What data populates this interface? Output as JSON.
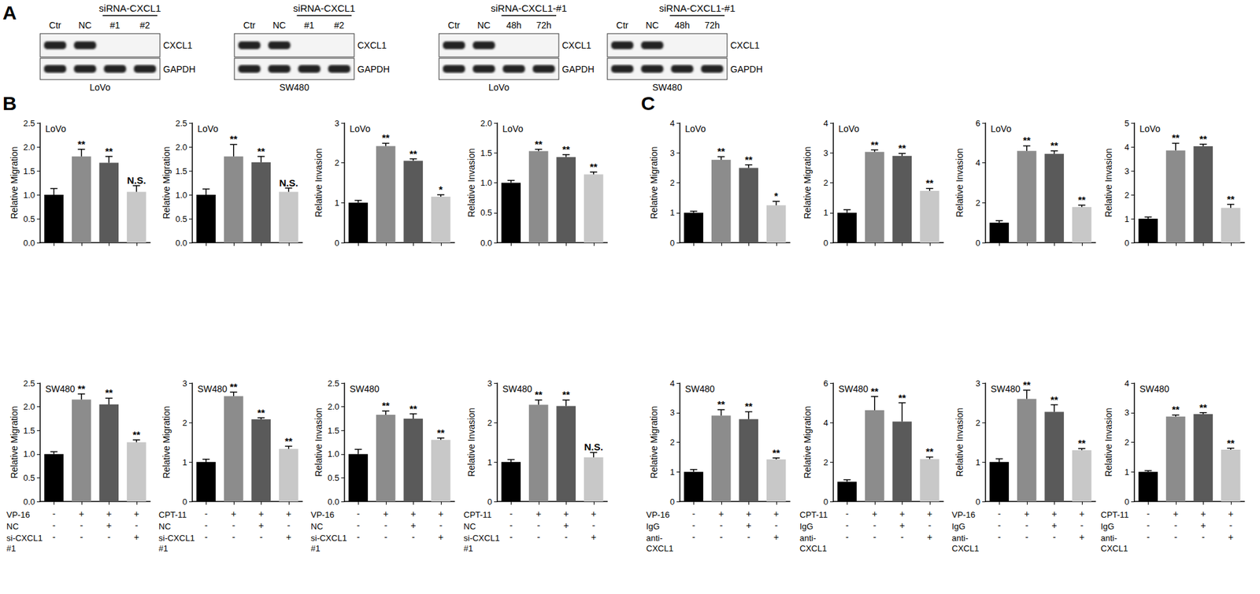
{
  "panel_labels": [
    "A",
    "B",
    "C"
  ],
  "blots": [
    {
      "header": "siRNA-CXCL1",
      "lanes": [
        "Ctr",
        "NC",
        "#1",
        "#2"
      ],
      "label": "LoVo",
      "proteins": [
        {
          "name": "CXCL1",
          "bands": [
            1,
            1,
            0,
            0
          ]
        },
        {
          "name": "GAPDH",
          "bands": [
            1,
            1,
            1,
            1
          ]
        }
      ]
    },
    {
      "header": "siRNA-CXCL1",
      "lanes": [
        "Ctr",
        "NC",
        "#1",
        "#2"
      ],
      "label": "SW480",
      "proteins": [
        {
          "name": "CXCL1",
          "bands": [
            1,
            1,
            0,
            0
          ]
        },
        {
          "name": "GAPDH",
          "bands": [
            1,
            1,
            1,
            1
          ]
        }
      ]
    },
    {
      "header": "siRNA-CXCL1-#1",
      "lanes": [
        "Ctr",
        "NC",
        "48h",
        "72h"
      ],
      "label": "LoVo",
      "proteins": [
        {
          "name": "CXCL1",
          "bands": [
            1,
            1,
            0,
            0
          ]
        },
        {
          "name": "GAPDH",
          "bands": [
            1,
            1,
            1,
            1
          ]
        }
      ]
    },
    {
      "header": "siRNA-CXCL1-#1",
      "lanes": [
        "Ctr",
        "NC",
        "48h",
        "72h"
      ],
      "label": "SW480",
      "proteins": [
        {
          "name": "CXCL1",
          "bands": [
            1,
            1,
            0,
            0
          ]
        },
        {
          "name": "GAPDH",
          "bands": [
            1,
            1,
            1,
            1
          ]
        }
      ]
    }
  ],
  "chart_data": [
    {
      "type": "bar",
      "title": "LoVo",
      "y_label": "Relative Migration",
      "categories": [
        null,
        null,
        null,
        null
      ],
      "values": [
        1.0,
        1.8,
        1.67,
        1.06
      ],
      "errors": [
        0.13,
        0.15,
        0.13,
        0.13
      ],
      "annotations": [
        null,
        "**",
        "**",
        "N.S."
      ],
      "colors": [
        "#000000",
        "#8c8c8c",
        "#5a5a5a",
        "#c8c8c8"
      ],
      "ylim": [
        0,
        2.5
      ],
      "yticks": [
        {
          "value": 0,
          "label": "0.0"
        },
        0.5,
        {
          "value": 1,
          "label": "1.0"
        },
        1.5,
        {
          "value": 2,
          "label": "2.0"
        },
        2.5
      ],
      "grid": false
    },
    {
      "type": "bar",
      "title": "LoVo",
      "y_label": "Relative Migration",
      "categories": [
        null,
        null,
        null,
        null
      ],
      "values": [
        1.0,
        1.8,
        1.68,
        1.06
      ],
      "errors": [
        0.12,
        0.25,
        0.12,
        0.08
      ],
      "annotations": [
        null,
        "**",
        "**",
        "N.S."
      ],
      "colors": [
        "#000000",
        "#8c8c8c",
        "#5a5a5a",
        "#c8c8c8"
      ],
      "ylim": [
        0,
        2.5
      ],
      "yticks": [
        {
          "value": 0,
          "label": "0.0"
        },
        0.5,
        {
          "value": 1,
          "label": "1.0"
        },
        1.5,
        {
          "value": 2,
          "label": "2.0"
        },
        2.5
      ],
      "grid": false
    },
    {
      "type": "bar",
      "title": "LoVo",
      "y_label": "Relative Invasion",
      "categories": [
        null,
        null,
        null,
        null
      ],
      "values": [
        1.0,
        2.42,
        2.05,
        1.15
      ],
      "errors": [
        0.06,
        0.07,
        0.05,
        0.05
      ],
      "annotations": [
        null,
        "**",
        "**",
        "*"
      ],
      "colors": [
        "#000000",
        "#8c8c8c",
        "#5a5a5a",
        "#c8c8c8"
      ],
      "ylim": [
        0,
        3
      ],
      "yticks": [
        0,
        1,
        2,
        3
      ],
      "grid": false
    },
    {
      "type": "bar",
      "title": "LoVo",
      "y_label": "Relative Invasion",
      "categories": [
        null,
        null,
        null,
        null
      ],
      "values": [
        1.0,
        1.53,
        1.43,
        1.14
      ],
      "errors": [
        0.04,
        0.03,
        0.04,
        0.04
      ],
      "annotations": [
        null,
        "**",
        "**",
        "**"
      ],
      "colors": [
        "#000000",
        "#8c8c8c",
        "#5a5a5a",
        "#c8c8c8"
      ],
      "ylim": [
        0,
        2
      ],
      "yticks": [
        {
          "value": 0,
          "label": "0.0"
        },
        0.5,
        {
          "value": 1,
          "label": "1.0"
        },
        1.5,
        {
          "value": 2,
          "label": "2.0"
        }
      ],
      "grid": false
    },
    {
      "type": "bar",
      "title": "SW480",
      "y_label": "Relative Migration",
      "categories": [
        null,
        null,
        null,
        null
      ],
      "values": [
        1.0,
        2.15,
        2.05,
        1.25
      ],
      "errors": [
        0.05,
        0.12,
        0.13,
        0.05
      ],
      "annotations": [
        null,
        "**",
        "**",
        "**"
      ],
      "colors": [
        "#000000",
        "#8c8c8c",
        "#5a5a5a",
        "#c8c8c8"
      ],
      "ylim": [
        0,
        2.5
      ],
      "yticks": [
        {
          "value": 0,
          "label": "0.0"
        },
        0.5,
        {
          "value": 1,
          "label": "1.0"
        },
        1.5,
        {
          "value": 2,
          "label": "2.0"
        },
        2.5
      ],
      "grid": false,
      "treatments": [
        {
          "label": "VP-16",
          "marks": [
            "-",
            "+",
            "+",
            "+"
          ]
        },
        {
          "label": "NC",
          "marks": [
            "-",
            "-",
            "+",
            "-"
          ]
        },
        {
          "label": "si-CXCL1\n#1",
          "marks": [
            "-",
            "-",
            "-",
            "+"
          ]
        }
      ]
    },
    {
      "type": "bar",
      "title": "SW480",
      "y_label": "Relative Migration",
      "categories": [
        null,
        null,
        null,
        null
      ],
      "values": [
        1.0,
        2.67,
        2.08,
        1.33
      ],
      "errors": [
        0.07,
        0.1,
        0.04,
        0.07
      ],
      "annotations": [
        null,
        "**",
        "**",
        "**"
      ],
      "colors": [
        "#000000",
        "#8c8c8c",
        "#5a5a5a",
        "#c8c8c8"
      ],
      "ylim": [
        0,
        3
      ],
      "yticks": [
        0,
        1,
        2,
        3
      ],
      "grid": false,
      "treatments": [
        {
          "label": "CPT-11",
          "marks": [
            "-",
            "+",
            "+",
            "+"
          ]
        },
        {
          "label": "NC",
          "marks": [
            "-",
            "-",
            "+",
            "-"
          ]
        },
        {
          "label": "si-CXCL1\n#1",
          "marks": [
            "-",
            "-",
            "-",
            "+"
          ]
        }
      ]
    },
    {
      "type": "bar",
      "title": "SW480",
      "y_label": "Relative Invasion",
      "categories": [
        null,
        null,
        null,
        null
      ],
      "values": [
        1.0,
        1.83,
        1.75,
        1.3
      ],
      "errors": [
        0.1,
        0.08,
        0.1,
        0.04
      ],
      "annotations": [
        null,
        "**",
        "**",
        "**"
      ],
      "colors": [
        "#000000",
        "#8c8c8c",
        "#5a5a5a",
        "#c8c8c8"
      ],
      "ylim": [
        0,
        2.5
      ],
      "yticks": [
        {
          "value": 0,
          "label": "0.0"
        },
        0.5,
        {
          "value": 1,
          "label": "1.0"
        },
        1.5,
        {
          "value": 2,
          "label": "2.0"
        },
        2.5
      ],
      "grid": false,
      "treatments": [
        {
          "label": "VP-16",
          "marks": [
            "-",
            "+",
            "+",
            "+"
          ]
        },
        {
          "label": "NC",
          "marks": [
            "-",
            "-",
            "+",
            "-"
          ]
        },
        {
          "label": "si-CXCL1\n#1",
          "marks": [
            "-",
            "-",
            "-",
            "+"
          ]
        }
      ]
    },
    {
      "type": "bar",
      "title": "SW480",
      "y_label": "Relative Invasion",
      "categories": [
        null,
        null,
        null,
        null
      ],
      "values": [
        1.0,
        2.45,
        2.42,
        1.12
      ],
      "errors": [
        0.06,
        0.12,
        0.15,
        0.12
      ],
      "annotations": [
        null,
        "**",
        "**",
        "N.S."
      ],
      "colors": [
        "#000000",
        "#8c8c8c",
        "#5a5a5a",
        "#c8c8c8"
      ],
      "ylim": [
        0,
        3
      ],
      "yticks": [
        0,
        1,
        2,
        3
      ],
      "grid": false,
      "treatments": [
        {
          "label": "CPT-11",
          "marks": [
            "-",
            "+",
            "+",
            "+"
          ]
        },
        {
          "label": "NC",
          "marks": [
            "-",
            "-",
            "+",
            "-"
          ]
        },
        {
          "label": "si-CXCL1\n#1",
          "marks": [
            "-",
            "-",
            "-",
            "+"
          ]
        }
      ]
    },
    {
      "type": "bar",
      "title": "LoVo",
      "y_label": "Relative Migration",
      "categories": [
        null,
        null,
        null,
        null
      ],
      "values": [
        1.0,
        2.77,
        2.5,
        1.25
      ],
      "errors": [
        0.05,
        0.1,
        0.1,
        0.13
      ],
      "annotations": [
        null,
        "**",
        "**",
        "*"
      ],
      "colors": [
        "#000000",
        "#8c8c8c",
        "#5a5a5a",
        "#c8c8c8"
      ],
      "ylim": [
        0,
        4
      ],
      "yticks": [
        0,
        1,
        2,
        3,
        4
      ],
      "grid": false
    },
    {
      "type": "bar",
      "title": "LoVo",
      "y_label": "Relative Migration",
      "categories": [
        null,
        null,
        null,
        null
      ],
      "values": [
        1.0,
        3.03,
        2.9,
        1.73
      ],
      "errors": [
        0.1,
        0.07,
        0.08,
        0.08
      ],
      "annotations": [
        null,
        "**",
        "**",
        "**"
      ],
      "colors": [
        "#000000",
        "#8c8c8c",
        "#5a5a5a",
        "#c8c8c8"
      ],
      "ylim": [
        0,
        4
      ],
      "yticks": [
        0,
        1,
        2,
        3,
        4
      ],
      "grid": false
    },
    {
      "type": "bar",
      "title": "LoVo",
      "y_label": "Relative Invasion",
      "categories": [
        null,
        null,
        null,
        null
      ],
      "values": [
        1.0,
        4.6,
        4.45,
        1.78
      ],
      "errors": [
        0.1,
        0.25,
        0.15,
        0.1
      ],
      "annotations": [
        null,
        "**",
        "**",
        "**"
      ],
      "colors": [
        "#000000",
        "#8c8c8c",
        "#5a5a5a",
        "#c8c8c8"
      ],
      "ylim": [
        0,
        6
      ],
      "yticks": [
        0,
        2,
        4,
        6
      ],
      "grid": false
    },
    {
      "type": "bar",
      "title": "LoVo",
      "y_label": "Relative Invasion",
      "categories": [
        null,
        null,
        null,
        null
      ],
      "values": [
        1.0,
        3.85,
        4.03,
        1.45
      ],
      "errors": [
        0.07,
        0.3,
        0.08,
        0.15
      ],
      "annotations": [
        null,
        "**",
        "**",
        "**"
      ],
      "colors": [
        "#000000",
        "#8c8c8c",
        "#5a5a5a",
        "#c8c8c8"
      ],
      "ylim": [
        0,
        5
      ],
      "yticks": [
        0,
        1,
        2,
        3,
        4,
        5
      ],
      "grid": false
    },
    {
      "type": "bar",
      "title": "SW480",
      "y_label": "Relative Migration",
      "categories": [
        null,
        null,
        null,
        null
      ],
      "values": [
        1.0,
        2.9,
        2.78,
        1.42
      ],
      "errors": [
        0.08,
        0.2,
        0.25,
        0.05
      ],
      "annotations": [
        null,
        "**",
        "**",
        "**"
      ],
      "colors": [
        "#000000",
        "#8c8c8c",
        "#5a5a5a",
        "#c8c8c8"
      ],
      "ylim": [
        0,
        4
      ],
      "yticks": [
        0,
        1,
        2,
        3,
        4
      ],
      "grid": false,
      "treatments": [
        {
          "label": "VP-16",
          "marks": [
            "-",
            "+",
            "+",
            "+"
          ]
        },
        {
          "label": "IgG",
          "marks": [
            "-",
            "-",
            "+",
            "-"
          ]
        },
        {
          "label": "anti-\nCXCL1",
          "marks": [
            "-",
            "-",
            "-",
            "+"
          ]
        }
      ]
    },
    {
      "type": "bar",
      "title": "SW480",
      "y_label": "Relative Migration",
      "categories": [
        null,
        null,
        null,
        null
      ],
      "values": [
        1.0,
        4.62,
        4.05,
        2.15
      ],
      "errors": [
        0.1,
        0.7,
        0.95,
        0.1
      ],
      "annotations": [
        null,
        "**",
        "**",
        "**"
      ],
      "colors": [
        "#000000",
        "#8c8c8c",
        "#5a5a5a",
        "#c8c8c8"
      ],
      "ylim": [
        0,
        6
      ],
      "yticks": [
        0,
        2,
        4,
        6
      ],
      "grid": false,
      "treatments": [
        {
          "label": "CPT-11",
          "marks": [
            "-",
            "+",
            "+",
            "+"
          ]
        },
        {
          "label": "IgG",
          "marks": [
            "-",
            "-",
            "+",
            "-"
          ]
        },
        {
          "label": "anti-\nCXCL1",
          "marks": [
            "-",
            "-",
            "-",
            "+"
          ]
        }
      ]
    },
    {
      "type": "bar",
      "title": "SW480",
      "y_label": "Relative Invasion",
      "categories": [
        null,
        null,
        null,
        null
      ],
      "values": [
        1.0,
        2.6,
        2.27,
        1.3
      ],
      "errors": [
        0.08,
        0.22,
        0.18,
        0.04
      ],
      "annotations": [
        null,
        "**",
        "**",
        "**"
      ],
      "colors": [
        "#000000",
        "#8c8c8c",
        "#5a5a5a",
        "#c8c8c8"
      ],
      "ylim": [
        0,
        3
      ],
      "yticks": [
        0,
        1,
        2,
        3
      ],
      "grid": false,
      "treatments": [
        {
          "label": "VP-16",
          "marks": [
            "-",
            "+",
            "+",
            "+"
          ]
        },
        {
          "label": "IgG",
          "marks": [
            "-",
            "-",
            "+",
            "-"
          ]
        },
        {
          "label": "anti-\nCXCL1",
          "marks": [
            "-",
            "-",
            "-",
            "+"
          ]
        }
      ]
    },
    {
      "type": "bar",
      "title": "SW480",
      "y_label": "Relative Invasion",
      "categories": [
        null,
        null,
        null,
        null
      ],
      "values": [
        1.0,
        2.87,
        2.95,
        1.75
      ],
      "errors": [
        0.04,
        0.05,
        0.05,
        0.05
      ],
      "annotations": [
        null,
        "**",
        "**",
        "**"
      ],
      "colors": [
        "#000000",
        "#8c8c8c",
        "#5a5a5a",
        "#c8c8c8"
      ],
      "ylim": [
        0,
        4
      ],
      "yticks": [
        0,
        1,
        2,
        3,
        4
      ],
      "grid": false,
      "treatments": [
        {
          "label": "CPT-11",
          "marks": [
            "-",
            "+",
            "+",
            "+"
          ]
        },
        {
          "label": "IgG",
          "marks": [
            "-",
            "-",
            "+",
            "-"
          ]
        },
        {
          "label": "anti-\nCXCL1",
          "marks": [
            "-",
            "-",
            "-",
            "+"
          ]
        }
      ]
    }
  ]
}
